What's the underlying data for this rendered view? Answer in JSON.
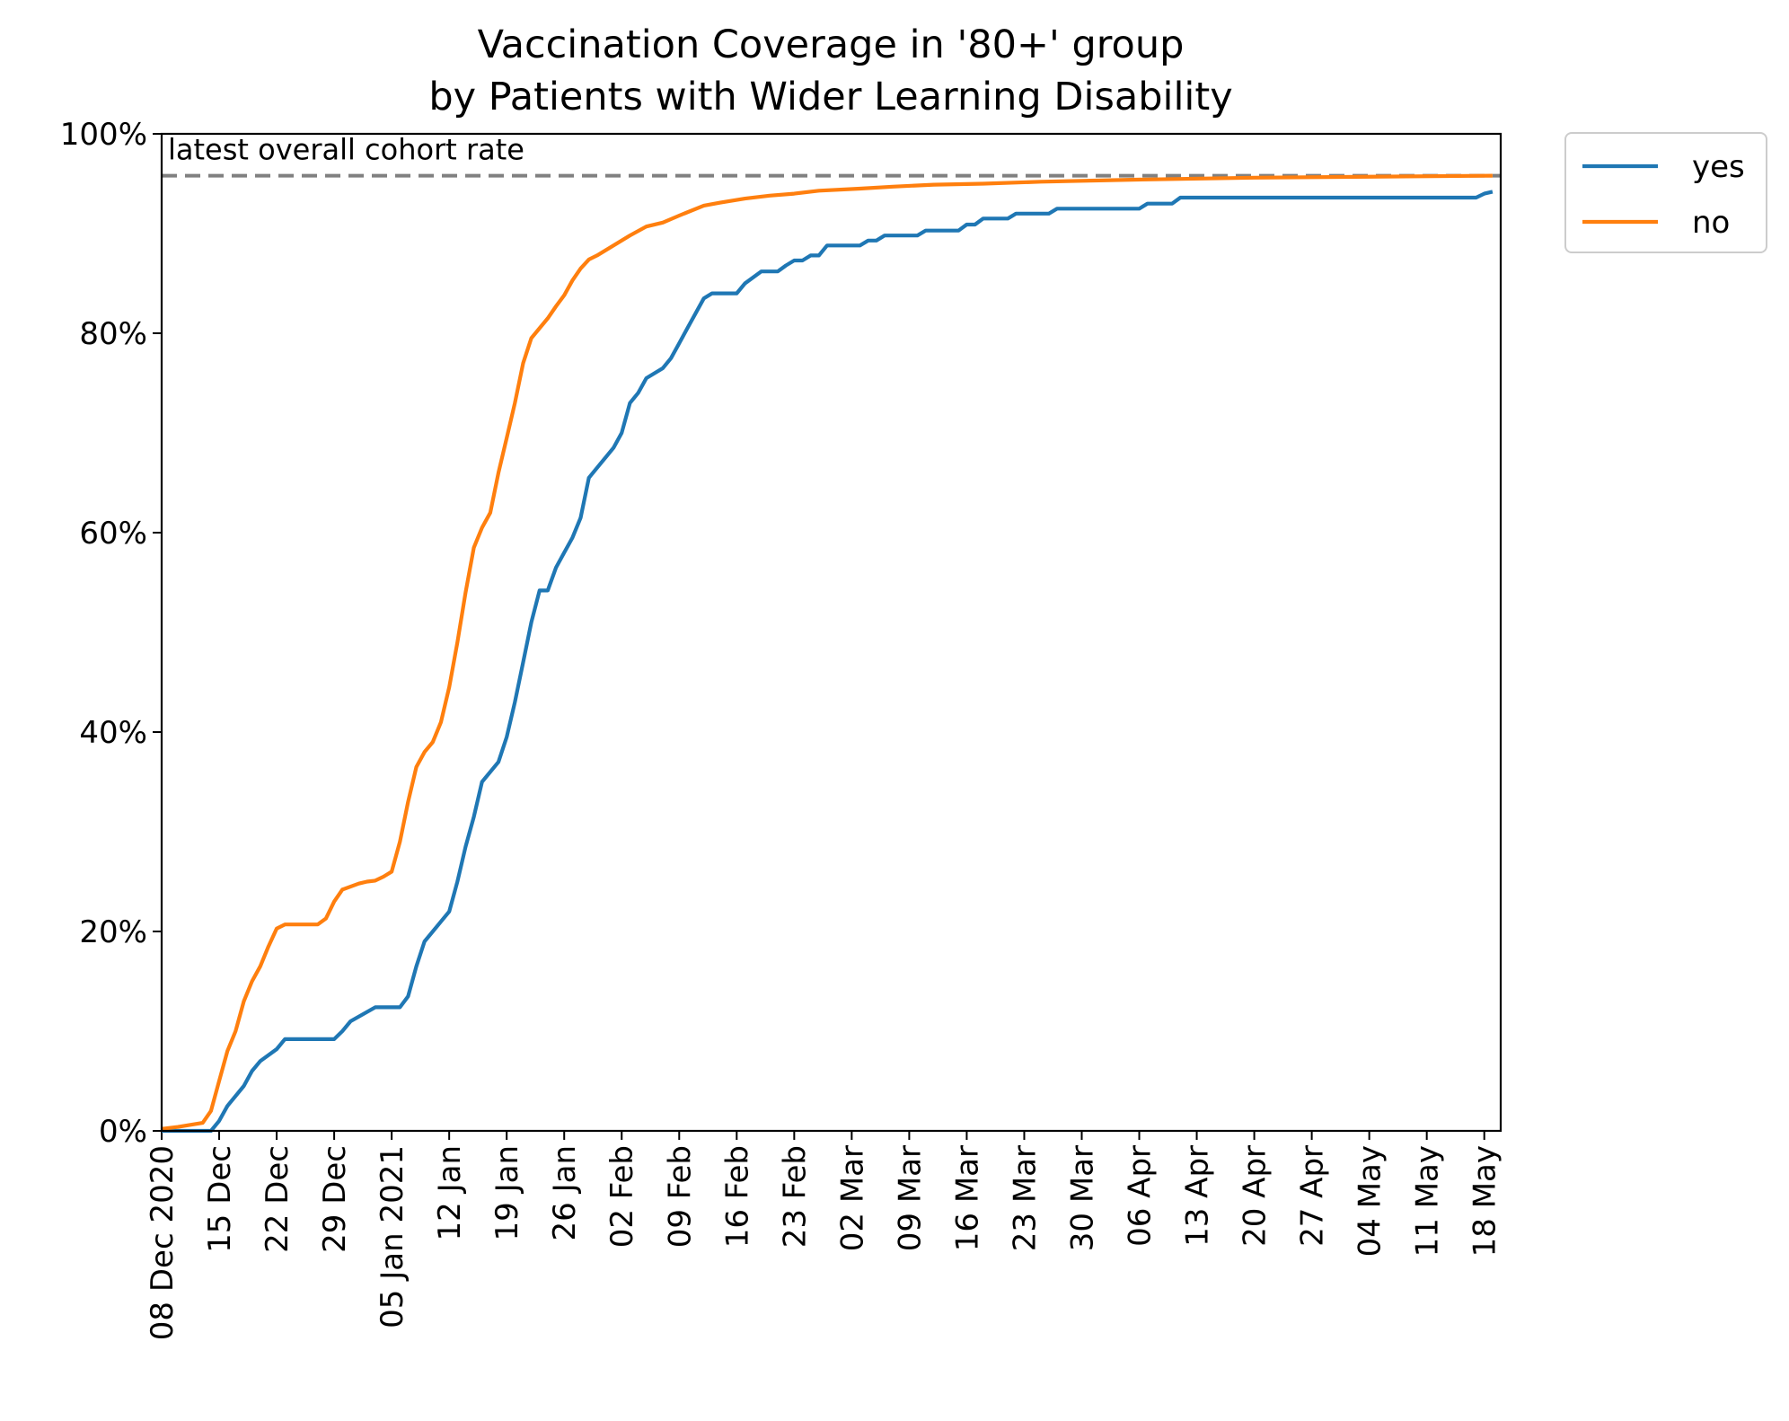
{
  "chart_data": {
    "type": "line",
    "title_lines": [
      "Vaccination Coverage in '80+' group",
      "by Patients with Wider Learning Disability"
    ],
    "xlabel": "",
    "ylabel": "",
    "x_start": "2020-12-08",
    "x_end": "2021-05-20",
    "ylim": [
      0,
      100
    ],
    "y_ticks": [
      0,
      20,
      40,
      60,
      80,
      100
    ],
    "y_tick_labels": [
      "0%",
      "20%",
      "40%",
      "60%",
      "80%",
      "100%"
    ],
    "x_ticks": [
      "2020-12-08",
      "2020-12-15",
      "2020-12-22",
      "2020-12-29",
      "2021-01-05",
      "2021-01-12",
      "2021-01-19",
      "2021-01-26",
      "2021-02-02",
      "2021-02-09",
      "2021-02-16",
      "2021-02-23",
      "2021-03-02",
      "2021-03-09",
      "2021-03-16",
      "2021-03-23",
      "2021-03-30",
      "2021-04-06",
      "2021-04-13",
      "2021-04-20",
      "2021-04-27",
      "2021-05-04",
      "2021-05-11",
      "2021-05-18"
    ],
    "x_tick_labels": [
      "08 Dec 2020",
      "15 Dec",
      "22 Dec",
      "29 Dec",
      "05 Jan 2021",
      "12 Jan",
      "19 Jan",
      "26 Jan",
      "02 Feb",
      "09 Feb",
      "16 Feb",
      "23 Feb",
      "02 Mar",
      "09 Mar",
      "16 Mar",
      "23 Mar",
      "30 Mar",
      "06 Apr",
      "13 Apr",
      "20 Apr",
      "27 Apr",
      "04 May",
      "11 May",
      "18 May"
    ],
    "reference_line": {
      "label": "latest overall cohort rate",
      "value": 95.8,
      "color": "#808080",
      "style": "dashed"
    },
    "legend": {
      "position": "outside-top-right"
    },
    "grid": false,
    "series": [
      {
        "name": "yes",
        "color": "#1f77b4",
        "points": [
          [
            "2020-12-08",
            0
          ],
          [
            "2020-12-14",
            0
          ],
          [
            "2020-12-15",
            1.0
          ],
          [
            "2020-12-16",
            2.5
          ],
          [
            "2020-12-18",
            4.5
          ],
          [
            "2020-12-19",
            6.0
          ],
          [
            "2020-12-20",
            7.0
          ],
          [
            "2020-12-22",
            8.2
          ],
          [
            "2020-12-23",
            9.2
          ],
          [
            "2020-12-29",
            9.2
          ],
          [
            "2020-12-30",
            10.0
          ],
          [
            "2020-12-31",
            11.0
          ],
          [
            "2021-01-03",
            12.4
          ],
          [
            "2021-01-06",
            12.4
          ],
          [
            "2021-01-07",
            13.5
          ],
          [
            "2021-01-08",
            16.5
          ],
          [
            "2021-01-09",
            19.0
          ],
          [
            "2021-01-10",
            20.0
          ],
          [
            "2021-01-11",
            21.0
          ],
          [
            "2021-01-12",
            22.0
          ],
          [
            "2021-01-13",
            25.0
          ],
          [
            "2021-01-14",
            28.5
          ],
          [
            "2021-01-15",
            31.5
          ],
          [
            "2021-01-16",
            35.0
          ],
          [
            "2021-01-18",
            37.0
          ],
          [
            "2021-01-19",
            39.5
          ],
          [
            "2021-01-20",
            43.0
          ],
          [
            "2021-01-21",
            47.0
          ],
          [
            "2021-01-22",
            51.0
          ],
          [
            "2021-01-23",
            54.2
          ],
          [
            "2021-01-24",
            54.2
          ],
          [
            "2021-01-25",
            56.5
          ],
          [
            "2021-01-26",
            58.0
          ],
          [
            "2021-01-27",
            59.5
          ],
          [
            "2021-01-28",
            61.5
          ],
          [
            "2021-01-29",
            65.5
          ],
          [
            "2021-01-30",
            66.5
          ],
          [
            "2021-02-01",
            68.5
          ],
          [
            "2021-02-02",
            70.0
          ],
          [
            "2021-02-03",
            73.0
          ],
          [
            "2021-02-04",
            74.0
          ],
          [
            "2021-02-05",
            75.5
          ],
          [
            "2021-02-07",
            76.5
          ],
          [
            "2021-02-08",
            77.5
          ],
          [
            "2021-02-09",
            79.0
          ],
          [
            "2021-02-10",
            80.5
          ],
          [
            "2021-02-12",
            83.5
          ],
          [
            "2021-02-13",
            84.0
          ],
          [
            "2021-02-16",
            84.0
          ],
          [
            "2021-02-17",
            85.0
          ],
          [
            "2021-02-19",
            86.2
          ],
          [
            "2021-02-21",
            86.2
          ],
          [
            "2021-02-22",
            86.8
          ],
          [
            "2021-02-23",
            87.3
          ],
          [
            "2021-02-24",
            87.3
          ],
          [
            "2021-02-25",
            87.8
          ],
          [
            "2021-02-26",
            87.8
          ],
          [
            "2021-02-27",
            88.8
          ],
          [
            "2021-03-03",
            88.8
          ],
          [
            "2021-03-04",
            89.3
          ],
          [
            "2021-03-05",
            89.3
          ],
          [
            "2021-03-06",
            89.8
          ],
          [
            "2021-03-10",
            89.8
          ],
          [
            "2021-03-11",
            90.3
          ],
          [
            "2021-03-15",
            90.3
          ],
          [
            "2021-03-16",
            90.9
          ],
          [
            "2021-03-17",
            90.9
          ],
          [
            "2021-03-18",
            91.5
          ],
          [
            "2021-03-21",
            91.5
          ],
          [
            "2021-03-22",
            92.0
          ],
          [
            "2021-03-26",
            92.0
          ],
          [
            "2021-03-27",
            92.5
          ],
          [
            "2021-04-06",
            92.5
          ],
          [
            "2021-04-07",
            93.0
          ],
          [
            "2021-04-10",
            93.0
          ],
          [
            "2021-04-11",
            93.6
          ],
          [
            "2021-05-17",
            93.6
          ],
          [
            "2021-05-18",
            94.0
          ],
          [
            "2021-05-19",
            94.2
          ]
        ]
      },
      {
        "name": "no",
        "color": "#ff7f0e",
        "points": [
          [
            "2020-12-08",
            0.2
          ],
          [
            "2020-12-10",
            0.4
          ],
          [
            "2020-12-13",
            0.8
          ],
          [
            "2020-12-14",
            2.0
          ],
          [
            "2020-12-15",
            5.0
          ],
          [
            "2020-12-16",
            8.0
          ],
          [
            "2020-12-17",
            10.0
          ],
          [
            "2020-12-18",
            13.0
          ],
          [
            "2020-12-19",
            15.0
          ],
          [
            "2020-12-20",
            16.5
          ],
          [
            "2020-12-21",
            18.5
          ],
          [
            "2020-12-22",
            20.3
          ],
          [
            "2020-12-23",
            20.7
          ],
          [
            "2020-12-27",
            20.7
          ],
          [
            "2020-12-28",
            21.3
          ],
          [
            "2020-12-29",
            23.0
          ],
          [
            "2020-12-30",
            24.2
          ],
          [
            "2021-01-01",
            24.8
          ],
          [
            "2021-01-02",
            25.0
          ],
          [
            "2021-01-03",
            25.1
          ],
          [
            "2021-01-04",
            25.5
          ],
          [
            "2021-01-05",
            26.0
          ],
          [
            "2021-01-06",
            29.0
          ],
          [
            "2021-01-07",
            33.0
          ],
          [
            "2021-01-08",
            36.5
          ],
          [
            "2021-01-09",
            38.0
          ],
          [
            "2021-01-10",
            39.0
          ],
          [
            "2021-01-11",
            41.0
          ],
          [
            "2021-01-12",
            44.5
          ],
          [
            "2021-01-13",
            49.0
          ],
          [
            "2021-01-14",
            54.0
          ],
          [
            "2021-01-15",
            58.5
          ],
          [
            "2021-01-16",
            60.5
          ],
          [
            "2021-01-17",
            62.0
          ],
          [
            "2021-01-18",
            66.0
          ],
          [
            "2021-01-19",
            69.5
          ],
          [
            "2021-01-20",
            73.0
          ],
          [
            "2021-01-21",
            77.0
          ],
          [
            "2021-01-22",
            79.5
          ],
          [
            "2021-01-23",
            80.5
          ],
          [
            "2021-01-24",
            81.5
          ],
          [
            "2021-01-25",
            82.7
          ],
          [
            "2021-01-26",
            83.8
          ],
          [
            "2021-01-27",
            85.3
          ],
          [
            "2021-01-28",
            86.5
          ],
          [
            "2021-01-29",
            87.4
          ],
          [
            "2021-01-30",
            87.8
          ],
          [
            "2021-02-01",
            88.8
          ],
          [
            "2021-02-03",
            89.8
          ],
          [
            "2021-02-05",
            90.7
          ],
          [
            "2021-02-07",
            91.1
          ],
          [
            "2021-02-09",
            91.8
          ],
          [
            "2021-02-12",
            92.8
          ],
          [
            "2021-02-14",
            93.1
          ],
          [
            "2021-02-17",
            93.5
          ],
          [
            "2021-02-20",
            93.8
          ],
          [
            "2021-02-23",
            94.0
          ],
          [
            "2021-02-26",
            94.3
          ],
          [
            "2021-03-03",
            94.5
          ],
          [
            "2021-03-07",
            94.7
          ],
          [
            "2021-03-12",
            94.9
          ],
          [
            "2021-03-18",
            95.0
          ],
          [
            "2021-03-25",
            95.2
          ],
          [
            "2021-04-05",
            95.4
          ],
          [
            "2021-04-20",
            95.6
          ],
          [
            "2021-05-19",
            95.8
          ]
        ]
      }
    ]
  }
}
